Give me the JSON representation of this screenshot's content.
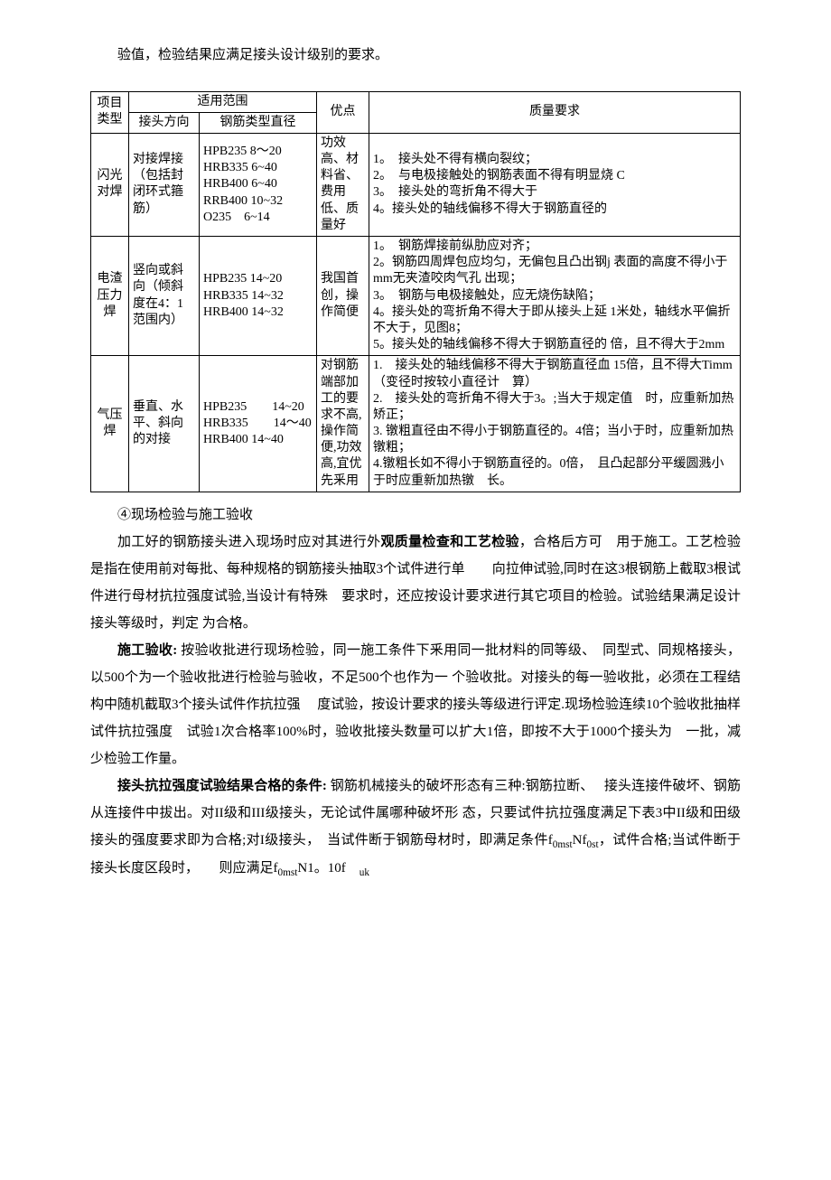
{
  "intro": "验值，检验结果应满足接头设计级别的要求。",
  "table": {
    "headers": {
      "type": "项目类型",
      "scope": "适用范围",
      "dir": "接头方向",
      "diam": "钢筋类型直径",
      "adv": "优点",
      "req": "质量要求"
    },
    "rows": [
      {
        "type": "闪光对焊",
        "dir": "对接焊接（包括封闭环式箍筋）",
        "diam": "HPB235 8〜20\nHRB335 6~40\nHRB400 6~40\nRRB400 10~32\nO235　6~14",
        "adv": "功效高、材料省、费用低、质量好",
        "req": "1。　接头处不得有横向裂纹；\n2。　与电极接触处的钢筋表面不得有明显烧 C\n3。　接头处的弯折角不得大于\n4。接头处的轴线偏移不得大于钢筋直径的"
      },
      {
        "type": "电渣压力 焊",
        "dir": "竖向或斜向（倾斜度在4：1范围内）",
        "diam": "HPB235 14~20\nHRB335 14~32\nHRB400 14~32",
        "adv": "我国首创，操作简便",
        "req": "1。　钢筋焊接前纵肋应对齐；\n2。钢筋四周焊包应均匀，无偏包且凸出钢j 表面的高度不得小于mm无夹渣咬肉气孔 出现；\n3。　钢筋与电极接触处，应无烧伤缺陷；\n4。接头处的弯折角不得大于即从接头上延 1米处，轴线水平偏折不大于，见图8；\n5。接头处的轴线偏移不得大于钢筋直径的 倍，且不得大于2mm"
      },
      {
        "type": "气压焊",
        "dir": "垂直、水平、斜向的对接",
        "diam": "HPB235　　14~20\nHRB335　　14〜40\nHRB400 14~40",
        "adv": "对钢筋端部加工的要求不高,操作简便,功效高,宜优先釆用",
        "req": "1.　接头处的轴线偏移不得大于钢筋直径血 15倍，且不得大Timm （变径时按较小直径计　算）\n2.　接头处的弯折角不得大于3。;当大于规定值　时，应重新加热矫正；\n3. 镦粗直径由不得小于钢筋直径的。4倍；当小于时，应重新加热镦粗；\n4.镦粗长如不得小于钢筋直径的。0倍，　且凸起部分平缓圆溅小于时应重新加热镦　长。"
      }
    ]
  },
  "after": {
    "title": "④现场检验与施工验收",
    "p1a": "加工好的钢筋接头进入现场时应对其进行外",
    "p1b": "观质量检查和工艺检验",
    "p1c": "，合格后方可　用于施工。工艺检验是指在使用前对每批、每种规格的钢筋接头抽取3个试件进行单　　向拉伸试验,同时在这3根钢筋上截取3根试件进行母材抗拉强度试验,当设计有特殊　要求时，还应按设计要求进行其它项目的检验。试验结果满足设计接头等级时，判定 为合格。",
    "p2a": "施工验收:",
    "p2b": " 按验收批进行现场检验，同一施工条件下釆用同一批材料的同等级、　同型式、同规格接头，以500个为一个验收批进行检验与验收，不足500个也作为一 个验收批。对接头的每一验收批，必须在工程结构中随机截取3个接头试件作抗拉强　 度试验，按设计要求的接头等级进行评定.现场检验连续10个验收批抽样试件抗拉强度　试验1次合格率100%时，验收批接头数量可以扩大1倍，即按不大于1000个接头为　一批，减少检验工作量。",
    "p3a": "接头抗拉强度试验结果合格的条件:",
    "p3b": " 钢筋机械接头的破坏形态有三种:钢筋拉断、　 接头连接件破坏、钢筋从连接件中拔出。对II级和III级接头，无论试件属哪种破坏形 态，只要试件抗拉强度满足下表3中II级和田级接头的强度要求即为合格;对I级接头，　当试件断于钢筋母材时，即满足条件f",
    "p3c": "Nf",
    "p3d": "，试件合格;当试件断于接头长度区段时，　　则应满足f",
    "p3e": "N1。10f"
  },
  "subs": {
    "omst": "0mst",
    "ost": "0st",
    "uk": "uk"
  }
}
